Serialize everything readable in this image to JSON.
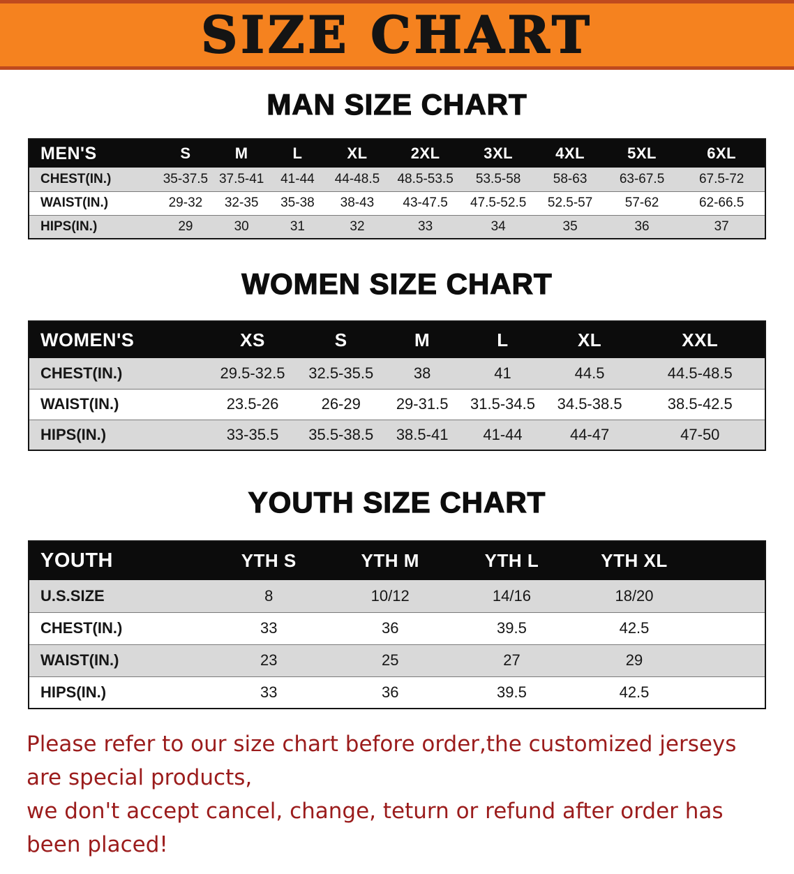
{
  "banner": {
    "title": "SIZE CHART",
    "bg_color": "#f5821f",
    "edge_color": "#bf4a1e",
    "text_color": "#141414"
  },
  "chart_data": [
    {
      "type": "table",
      "title": "MAN SIZE CHART",
      "columns": [
        "MEN'S",
        "S",
        "M",
        "L",
        "XL",
        "2XL",
        "3XL",
        "4XL",
        "5XL",
        "6XL"
      ],
      "rows": [
        [
          "CHEST(IN.)",
          "35-37.5",
          "37.5-41",
          "41-44",
          "44-48.5",
          "48.5-53.5",
          "53.5-58",
          "58-63",
          "63-67.5",
          "67.5-72"
        ],
        [
          "WAIST(IN.)",
          "29-32",
          "32-35",
          "35-38",
          "38-43",
          "43-47.5",
          "47.5-52.5",
          "52.5-57",
          "57-62",
          "62-66.5"
        ],
        [
          "HIPS(IN.)",
          "29",
          "30",
          "31",
          "32",
          "33",
          "34",
          "35",
          "36",
          "37"
        ]
      ]
    },
    {
      "type": "table",
      "title": "WOMEN SIZE CHART",
      "columns": [
        "WOMEN'S",
        "XS",
        "S",
        "M",
        "L",
        "XL",
        "XXL"
      ],
      "rows": [
        [
          "CHEST(IN.)",
          "29.5-32.5",
          "32.5-35.5",
          "38",
          "41",
          "44.5",
          "44.5-48.5"
        ],
        [
          "WAIST(IN.)",
          "23.5-26",
          "26-29",
          "29-31.5",
          "31.5-34.5",
          "34.5-38.5",
          "38.5-42.5"
        ],
        [
          "HIPS(IN.)",
          "33-35.5",
          "35.5-38.5",
          "38.5-41",
          "41-44",
          "44-47",
          "47-50"
        ]
      ]
    },
    {
      "type": "table",
      "title": "YOUTH SIZE CHART",
      "columns": [
        "YOUTH",
        "YTH S",
        "YTH M",
        "YTH L",
        "YTH XL"
      ],
      "rows": [
        [
          "U.S.SIZE",
          "8",
          "10/12",
          "14/16",
          "18/20"
        ],
        [
          "CHEST(IN.)",
          "33",
          "36",
          "39.5",
          "42.5"
        ],
        [
          "WAIST(IN.)",
          "23",
          "25",
          "27",
          "29"
        ],
        [
          "HIPS(IN.)",
          "33",
          "36",
          "39.5",
          "42.5"
        ]
      ]
    }
  ],
  "footer": {
    "line1": "Please refer to our size chart before order,the customized jerseys are special products,",
    "line2": "we don't accept cancel, change, teturn or refund after order has been placed!",
    "text_color": "#9b1c1c"
  },
  "colors": {
    "table_header_bg": "#0c0c0c",
    "row_shaded": "#d9d9d9",
    "row_plain": "#ffffff"
  }
}
